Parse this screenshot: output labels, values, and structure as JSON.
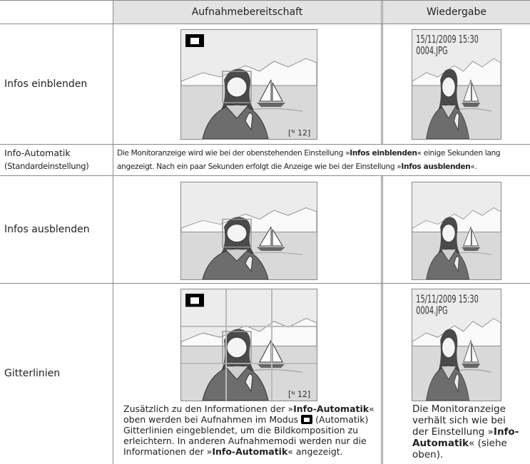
{
  "table": {
    "header": [
      "Aufnahmebereitschaft",
      "Wiedergabe"
    ],
    "rows": [
      {
        "label": "Infos einblenden"
      },
      {
        "label": [
          "Info-Automatik",
          "(Standardeinstellung)"
        ],
        "description": [
          "Die Monitoranzeige wird wie bei der obenstehenden Einstellung »",
          "Infos einblenden",
          "« einige Sekunden lang angezeigt. Nach ein paar Sekunden erfolgt die Anzeige wie bei der Einstellung »",
          "Infos ausblenden",
          "«."
        ]
      },
      {
        "label": "Infos ausblenden"
      },
      {
        "label": "Gitterlinien",
        "notes": [
          [
            "Zusätzlich zu den Informationen der »",
            "Info-Automatik",
            "« oben werden bei Aufnahmen im Modus ",
            "(Automatik) Gitterlinien eingeblendet, um die Bildkomposition zu erleichtern. In anderen Aufnahmemodi werden nur die Informationen der »",
            "Info-Automatik",
            "« angezeigt."
          ],
          [
            "Die Monitoranzeige verhält sich wie bei der Einstellung »",
            "Info-Automatik",
            "« (siehe oben)."
          ]
        ]
      }
    ]
  },
  "screen_text": {
    "date": "15/11/2009 15:30",
    "file": "0004.JPG"
  }
}
